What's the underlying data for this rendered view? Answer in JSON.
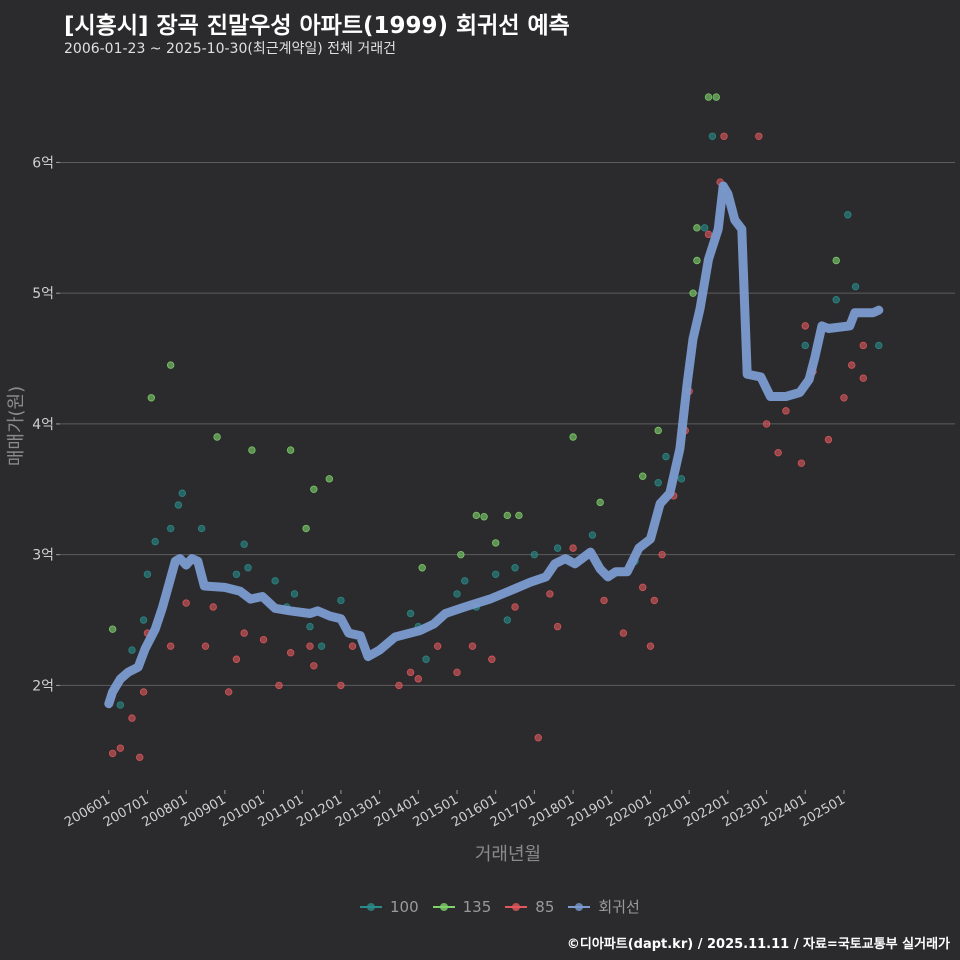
{
  "header": {
    "title": "[시흥시] 장곡 진말우성 아파트(1999) 회귀선 예측",
    "subtitle": "2006-01-23 ~ 2025-10-30(최근계약일) 전체 거래건"
  },
  "footer": "©디아파트(dapt.kr) / 2025.11.11 / 자료=국토교통부 실거래가",
  "chart_data": {
    "type": "scatter",
    "title": "[시흥시] 장곡 진말우성 아파트(1999) 회귀선 예측",
    "xlabel": "거래년월",
    "ylabel": "매매가(원)",
    "xlim": [
      2004.74,
      2027.87
    ],
    "ylim": [
      1.2,
      6.6
    ],
    "grid": "horizontal",
    "legend_position": "bottom",
    "x_ticks": [
      {
        "v": 2006,
        "label": "200601"
      },
      {
        "v": 2007,
        "label": "200701"
      },
      {
        "v": 2008,
        "label": "200801"
      },
      {
        "v": 2009,
        "label": "200901"
      },
      {
        "v": 2010,
        "label": "201001"
      },
      {
        "v": 2011,
        "label": "201101"
      },
      {
        "v": 2012,
        "label": "201201"
      },
      {
        "v": 2013,
        "label": "201301"
      },
      {
        "v": 2014,
        "label": "201401"
      },
      {
        "v": 2015,
        "label": "201501"
      },
      {
        "v": 2016,
        "label": "201601"
      },
      {
        "v": 2017,
        "label": "201701"
      },
      {
        "v": 2018,
        "label": "201801"
      },
      {
        "v": 2019,
        "label": "201901"
      },
      {
        "v": 2020,
        "label": "202001"
      },
      {
        "v": 2021,
        "label": "202101"
      },
      {
        "v": 2022,
        "label": "202201"
      },
      {
        "v": 2023,
        "label": "202301"
      },
      {
        "v": 2024,
        "label": "202401"
      },
      {
        "v": 2025,
        "label": "202501"
      }
    ],
    "y_ticks": [
      {
        "v": 2,
        "label": "2억"
      },
      {
        "v": 3,
        "label": "3억"
      },
      {
        "v": 4,
        "label": "4억"
      },
      {
        "v": 5,
        "label": "5억"
      },
      {
        "v": 6,
        "label": "6억"
      }
    ],
    "series": [
      {
        "name": "100",
        "color": "#2a8c8a",
        "points": [
          [
            2006.3,
            1.85
          ],
          [
            2006.6,
            2.27
          ],
          [
            2006.9,
            2.5
          ],
          [
            2007.0,
            2.85
          ],
          [
            2007.2,
            3.1
          ],
          [
            2007.6,
            3.2
          ],
          [
            2007.8,
            3.38
          ],
          [
            2007.9,
            3.47
          ],
          [
            2008.4,
            3.2
          ],
          [
            2009.3,
            2.85
          ],
          [
            2009.5,
            3.08
          ],
          [
            2009.6,
            2.9
          ],
          [
            2010.3,
            2.8
          ],
          [
            2010.6,
            2.6
          ],
          [
            2010.8,
            2.7
          ],
          [
            2011.2,
            2.45
          ],
          [
            2011.5,
            2.3
          ],
          [
            2012.0,
            2.65
          ],
          [
            2013.8,
            2.55
          ],
          [
            2014.0,
            2.45
          ],
          [
            2014.2,
            2.2
          ],
          [
            2015.0,
            2.7
          ],
          [
            2015.2,
            2.8
          ],
          [
            2015.5,
            2.6
          ],
          [
            2016.0,
            2.85
          ],
          [
            2016.3,
            2.5
          ],
          [
            2016.5,
            2.9
          ],
          [
            2017.0,
            3.0
          ],
          [
            2017.6,
            3.05
          ],
          [
            2018.5,
            3.15
          ],
          [
            2019.6,
            2.95
          ],
          [
            2020.2,
            3.55
          ],
          [
            2020.4,
            3.75
          ],
          [
            2020.8,
            3.58
          ],
          [
            2021.4,
            5.5
          ],
          [
            2021.6,
            6.2
          ],
          [
            2021.9,
            5.8
          ],
          [
            2024.0,
            4.6
          ],
          [
            2024.8,
            4.95
          ],
          [
            2025.1,
            5.6
          ],
          [
            2025.3,
            5.05
          ],
          [
            2025.9,
            4.6
          ]
        ]
      },
      {
        "name": "135",
        "color": "#7fd36b",
        "points": [
          [
            2006.1,
            2.43
          ],
          [
            2007.1,
            4.2
          ],
          [
            2007.6,
            4.45
          ],
          [
            2008.8,
            3.9
          ],
          [
            2009.7,
            3.8
          ],
          [
            2010.7,
            3.8
          ],
          [
            2011.1,
            3.2
          ],
          [
            2011.3,
            3.5
          ],
          [
            2011.7,
            3.58
          ],
          [
            2014.1,
            2.9
          ],
          [
            2015.1,
            3.0
          ],
          [
            2015.5,
            3.3
          ],
          [
            2015.7,
            3.29
          ],
          [
            2016.0,
            3.09
          ],
          [
            2016.3,
            3.3
          ],
          [
            2016.6,
            3.3
          ],
          [
            2018.0,
            3.9
          ],
          [
            2018.7,
            3.4
          ],
          [
            2019.8,
            3.6
          ],
          [
            2020.2,
            3.95
          ],
          [
            2021.1,
            5.0
          ],
          [
            2021.2,
            5.25
          ],
          [
            2021.5,
            6.5
          ],
          [
            2021.7,
            6.5
          ],
          [
            2021.2,
            5.5
          ],
          [
            2024.8,
            5.25
          ]
        ]
      },
      {
        "name": "85",
        "color": "#e0585c",
        "points": [
          [
            2006.1,
            1.48
          ],
          [
            2006.3,
            1.52
          ],
          [
            2006.6,
            1.75
          ],
          [
            2006.8,
            1.45
          ],
          [
            2006.9,
            1.95
          ],
          [
            2007.0,
            2.4
          ],
          [
            2007.6,
            2.3
          ],
          [
            2008.0,
            2.63
          ],
          [
            2008.5,
            2.3
          ],
          [
            2008.7,
            2.6
          ],
          [
            2009.1,
            1.95
          ],
          [
            2009.3,
            2.2
          ],
          [
            2009.5,
            2.4
          ],
          [
            2010.0,
            2.35
          ],
          [
            2010.4,
            2.0
          ],
          [
            2010.7,
            2.25
          ],
          [
            2011.2,
            2.3
          ],
          [
            2011.3,
            2.15
          ],
          [
            2012.0,
            2.0
          ],
          [
            2012.3,
            2.3
          ],
          [
            2013.5,
            2.0
          ],
          [
            2013.8,
            2.1
          ],
          [
            2014.0,
            2.05
          ],
          [
            2014.5,
            2.3
          ],
          [
            2015.0,
            2.1
          ],
          [
            2015.4,
            2.3
          ],
          [
            2015.9,
            2.2
          ],
          [
            2016.5,
            2.6
          ],
          [
            2017.1,
            1.6
          ],
          [
            2017.4,
            2.7
          ],
          [
            2017.6,
            2.45
          ],
          [
            2018.0,
            3.05
          ],
          [
            2018.8,
            2.65
          ],
          [
            2019.3,
            2.4
          ],
          [
            2019.8,
            2.75
          ],
          [
            2020.0,
            2.3
          ],
          [
            2020.1,
            2.65
          ],
          [
            2020.3,
            3.0
          ],
          [
            2020.6,
            3.45
          ],
          [
            2020.9,
            3.95
          ],
          [
            2021.0,
            4.25
          ],
          [
            2021.5,
            5.45
          ],
          [
            2021.8,
            5.85
          ],
          [
            2021.9,
            6.2
          ],
          [
            2022.8,
            6.2
          ],
          [
            2023.0,
            4.0
          ],
          [
            2023.3,
            3.78
          ],
          [
            2023.5,
            4.1
          ],
          [
            2023.9,
            3.7
          ],
          [
            2024.0,
            4.75
          ],
          [
            2024.2,
            4.4
          ],
          [
            2024.6,
            3.88
          ],
          [
            2025.0,
            4.2
          ],
          [
            2025.2,
            4.45
          ],
          [
            2025.5,
            4.6
          ],
          [
            2025.5,
            4.35
          ]
        ]
      }
    ],
    "regression": {
      "name": "회귀선",
      "color": "#7b9bd0",
      "points": [
        [
          2006.0,
          1.86
        ],
        [
          2006.1,
          1.95
        ],
        [
          2006.3,
          2.05
        ],
        [
          2006.5,
          2.1
        ],
        [
          2006.76,
          2.14
        ],
        [
          2006.94,
          2.28
        ],
        [
          2007.2,
          2.43
        ],
        [
          2007.38,
          2.59
        ],
        [
          2007.58,
          2.8
        ],
        [
          2007.72,
          2.95
        ],
        [
          2007.84,
          2.97
        ],
        [
          2008.0,
          2.92
        ],
        [
          2008.15,
          2.97
        ],
        [
          2008.3,
          2.95
        ],
        [
          2008.47,
          2.76
        ],
        [
          2009.0,
          2.75
        ],
        [
          2009.4,
          2.72
        ],
        [
          2009.66,
          2.66
        ],
        [
          2009.97,
          2.68
        ],
        [
          2010.3,
          2.59
        ],
        [
          2010.7,
          2.57
        ],
        [
          2011.2,
          2.55
        ],
        [
          2011.4,
          2.57
        ],
        [
          2011.72,
          2.53
        ],
        [
          2012.0,
          2.51
        ],
        [
          2012.2,
          2.4
        ],
        [
          2012.5,
          2.38
        ],
        [
          2012.7,
          2.22
        ],
        [
          2013.0,
          2.27
        ],
        [
          2013.4,
          2.37
        ],
        [
          2014.05,
          2.42
        ],
        [
          2014.4,
          2.47
        ],
        [
          2014.7,
          2.55
        ],
        [
          2015.2,
          2.6
        ],
        [
          2015.85,
          2.66
        ],
        [
          2016.5,
          2.74
        ],
        [
          2016.9,
          2.79
        ],
        [
          2017.3,
          2.83
        ],
        [
          2017.53,
          2.93
        ],
        [
          2017.8,
          2.97
        ],
        [
          2018.05,
          2.93
        ],
        [
          2018.45,
          3.02
        ],
        [
          2018.7,
          2.89
        ],
        [
          2018.9,
          2.83
        ],
        [
          2019.1,
          2.87
        ],
        [
          2019.4,
          2.87
        ],
        [
          2019.7,
          3.05
        ],
        [
          2020.0,
          3.12
        ],
        [
          2020.25,
          3.39
        ],
        [
          2020.5,
          3.47
        ],
        [
          2020.76,
          3.81
        ],
        [
          2020.95,
          4.31
        ],
        [
          2021.1,
          4.65
        ],
        [
          2021.28,
          4.88
        ],
        [
          2021.5,
          5.26
        ],
        [
          2021.75,
          5.49
        ],
        [
          2021.88,
          5.82
        ],
        [
          2022.0,
          5.76
        ],
        [
          2022.18,
          5.56
        ],
        [
          2022.36,
          5.49
        ],
        [
          2022.5,
          4.38
        ],
        [
          2022.85,
          4.36
        ],
        [
          2023.1,
          4.21
        ],
        [
          2023.5,
          4.21
        ],
        [
          2023.86,
          4.24
        ],
        [
          2024.1,
          4.34
        ],
        [
          2024.25,
          4.51
        ],
        [
          2024.43,
          4.75
        ],
        [
          2024.6,
          4.73
        ],
        [
          2025.15,
          4.75
        ],
        [
          2025.28,
          4.85
        ],
        [
          2025.75,
          4.85
        ],
        [
          2025.9,
          4.87
        ]
      ]
    }
  }
}
